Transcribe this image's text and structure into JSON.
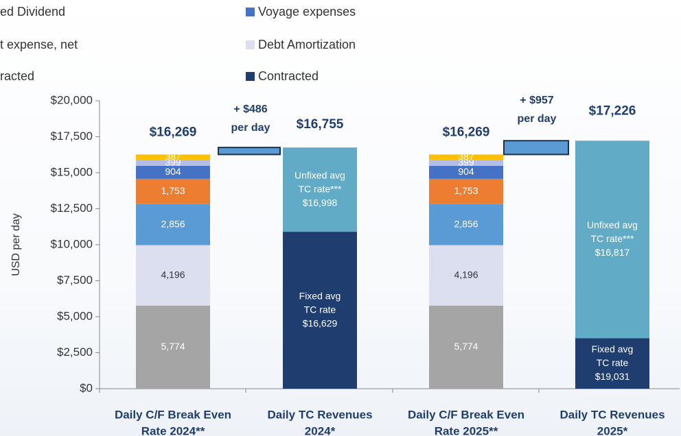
{
  "chart_data": {
    "type": "stacked_bar",
    "y_label": "USD per day",
    "categories": [
      [
        "Daily C/F Break Even",
        "Rate 2024**"
      ],
      [
        "Daily TC Revenues",
        "2024*"
      ],
      [
        "Daily C/F Break Even",
        "Rate 2025**"
      ],
      [
        "Daily TC Revenues",
        "2025*"
      ]
    ],
    "ylim": [
      0,
      20000
    ],
    "yticks": [
      {
        "value": 0,
        "label": "$0"
      },
      {
        "value": 2500,
        "label": "$2,500"
      },
      {
        "value": 5000,
        "label": "$5,000"
      },
      {
        "value": 7500,
        "label": "$7,500"
      },
      {
        "value": 10000,
        "label": "$10,000"
      },
      {
        "value": 12500,
        "label": "$12,500"
      },
      {
        "value": 15000,
        "label": "$15,000"
      },
      {
        "value": 17500,
        "label": "$17,500"
      },
      {
        "value": 20000,
        "label": "$20,000"
      }
    ],
    "series": [
      {
        "color": "#a5a5a5",
        "values": [
          5774,
          null,
          5774,
          null
        ],
        "value_labels": [
          "5,774",
          null,
          "5,774",
          null
        ]
      },
      {
        "name": "Debt Amortization",
        "color": "#dcdff0",
        "values": [
          4196,
          null,
          4196,
          null
        ],
        "value_labels": [
          "4,196",
          null,
          "4,196",
          null
        ]
      },
      {
        "color": "#5b9bd5",
        "values": [
          2856,
          null,
          2856,
          null
        ],
        "value_labels": [
          "2,856",
          null,
          "2,856",
          null
        ]
      },
      {
        "color": "#ed7d31",
        "values": [
          1753,
          null,
          1753,
          null
        ],
        "value_labels": [
          "1,753",
          null,
          "1,753",
          null
        ]
      },
      {
        "name": "Voyage expenses",
        "color": "#4472c4",
        "values": [
          904,
          null,
          904,
          null
        ],
        "value_labels": [
          "904",
          null,
          "904",
          null
        ]
      },
      {
        "name": "t expense, net",
        "color": "#b4bde6",
        "values": [
          399,
          null,
          399,
          null
        ],
        "value_labels": [
          "399",
          null,
          "399",
          null
        ]
      },
      {
        "name": "ed Dividend",
        "color": "#ffc000",
        "values": [
          387,
          null,
          387,
          null
        ],
        "value_labels": [
          "387",
          null,
          "387",
          null
        ]
      },
      {
        "name": "Contracted",
        "color": "#1f3d6e",
        "values": [
          null,
          10900,
          null,
          3500
        ],
        "value_labels": [
          null,
          [
            "Fixed avg",
            "TC rate",
            "$16,629"
          ],
          null,
          [
            "Fixed avg",
            "TC rate",
            "$19,031"
          ]
        ]
      },
      {
        "name": "racted",
        "color": "#62abc7",
        "values": [
          null,
          5855,
          null,
          13726
        ],
        "value_labels": [
          null,
          [
            "Unfixed avg",
            "TC rate***",
            "$16,998"
          ],
          null,
          [
            "Unfixed avg",
            "TC rate***",
            "$16,817"
          ]
        ]
      }
    ],
    "totals": [
      16269,
      16755,
      16269,
      17226
    ],
    "total_labels": [
      "$16,269",
      "$16,755",
      "$16,269",
      "$17,226"
    ],
    "annotations": [
      [
        "+ $486",
        "per day"
      ],
      [
        "+ $957",
        "per day"
      ]
    ],
    "connector_color": "#5b9bd5"
  }
}
